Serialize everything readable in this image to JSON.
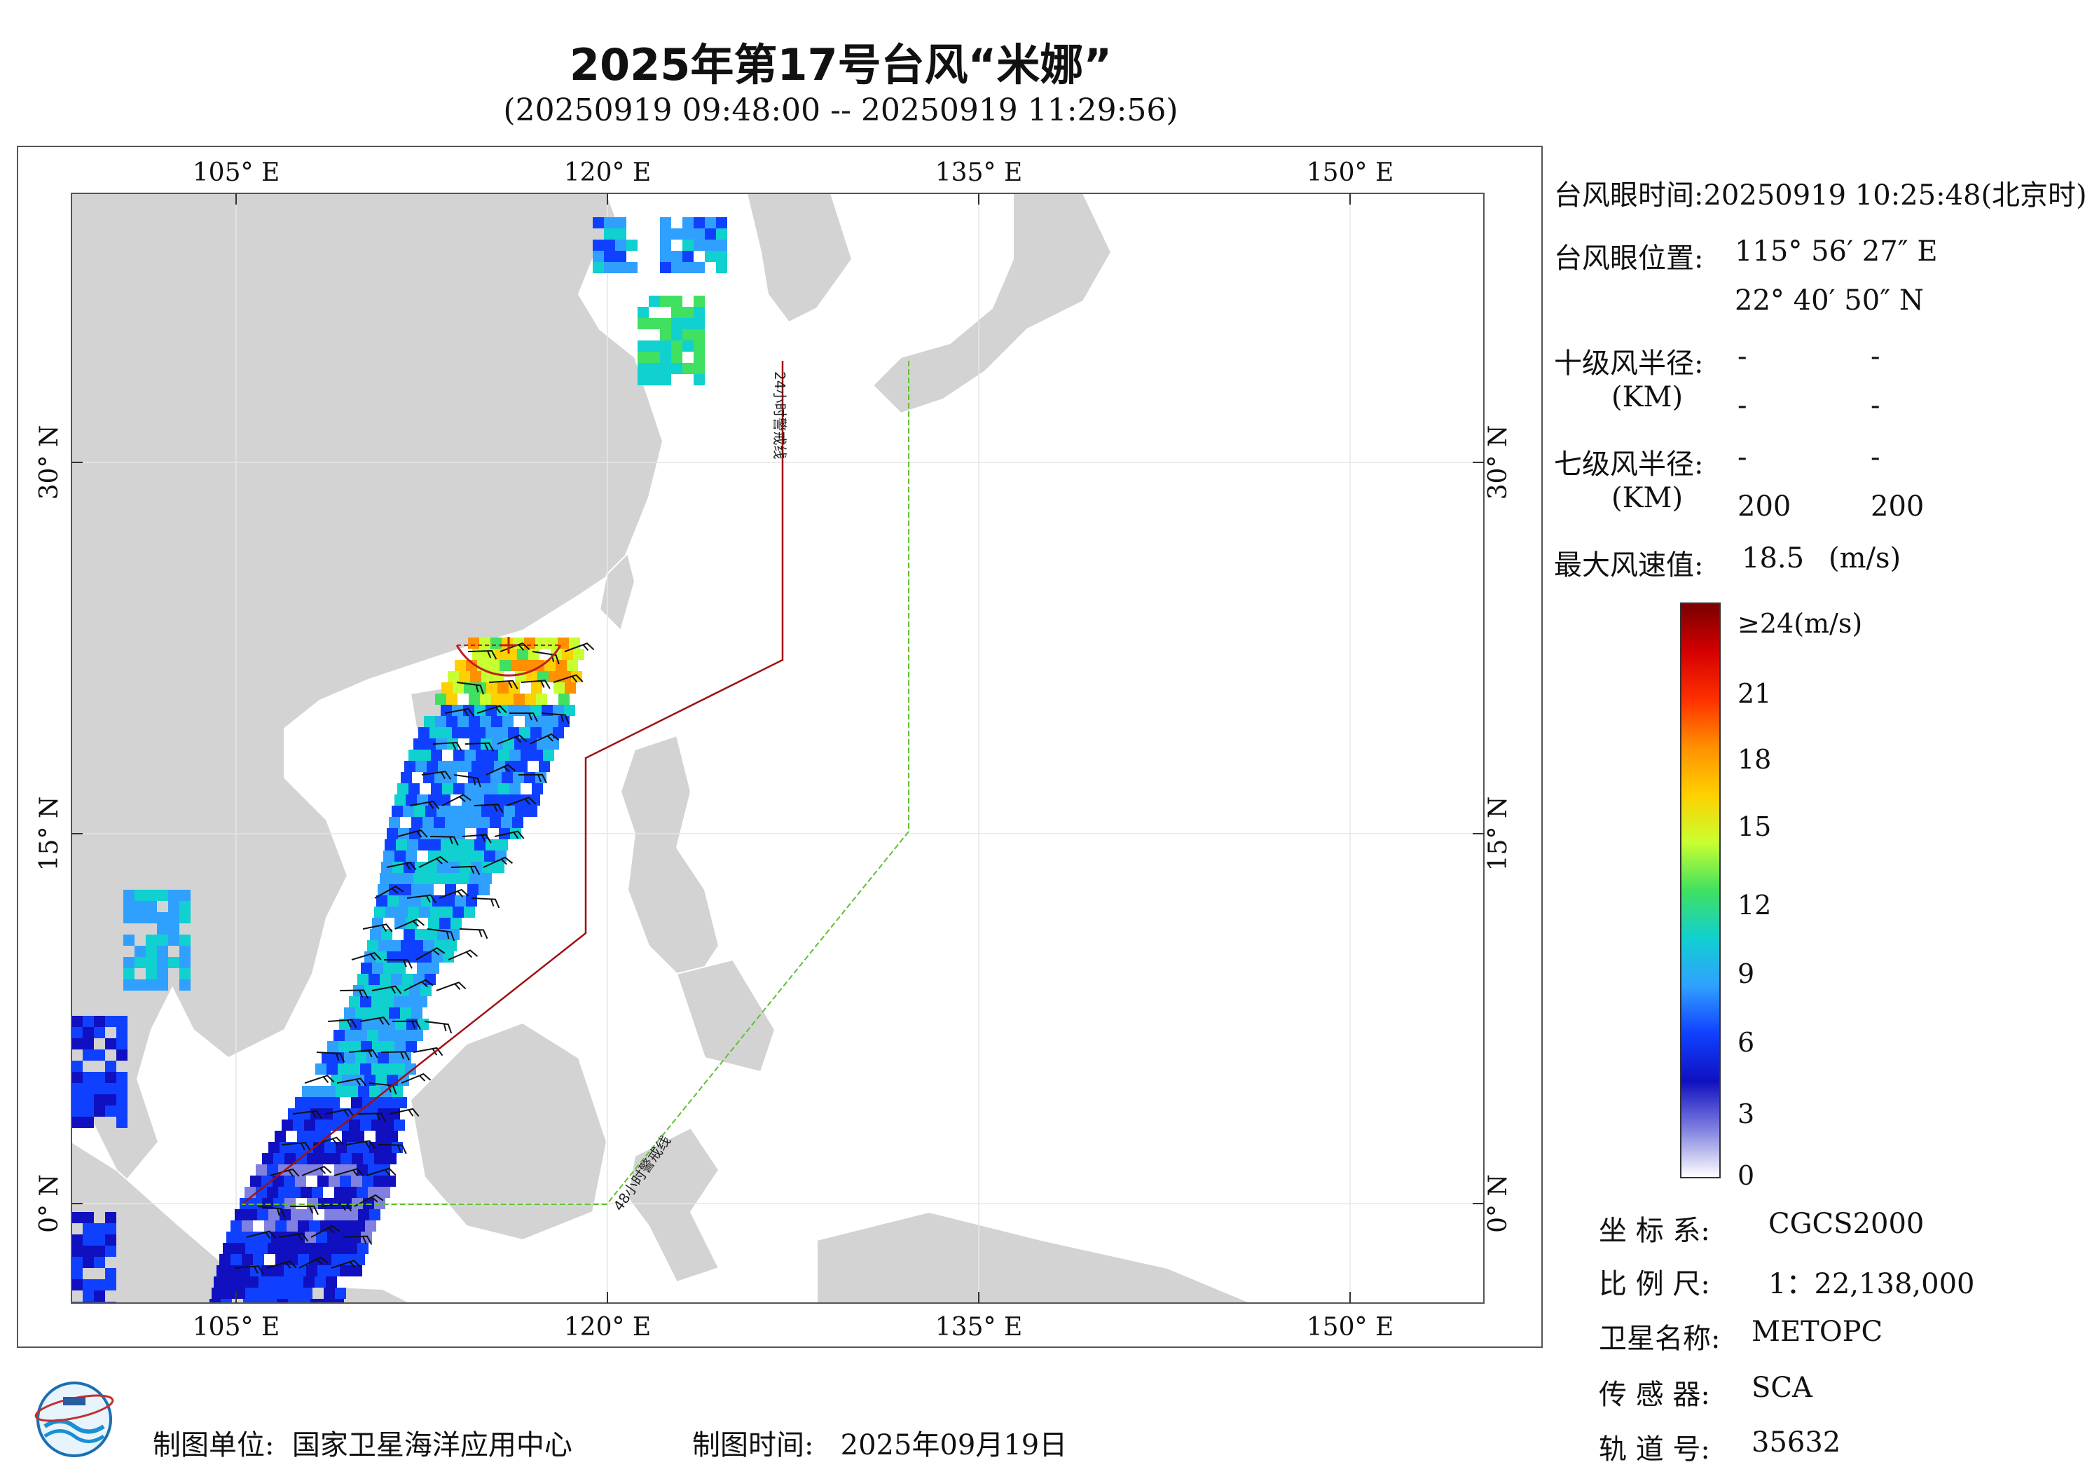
{
  "title": "2025年第17号台风“米娜”",
  "subtitle": "(20250919 09:48:00 -- 20250919 11:29:56)",
  "map": {
    "lon_ticks_top": [
      "105° E",
      "120° E",
      "135° E",
      "150° E"
    ],
    "lon_ticks_bottom": [
      "105° E",
      "120° E",
      "135° E",
      "150° E"
    ],
    "lat_ticks_left": [
      "30° N",
      "15° N",
      "0° N"
    ],
    "lat_ticks_right": [
      "30° N",
      "15° N",
      "0° N"
    ],
    "warning_24h_label": "24小时警戒线",
    "warning_48h_label": "48小时警戒线",
    "colors": {
      "land": "#d3d3d3",
      "sea": "#ffffff",
      "warning_24h": "#a01010",
      "warning_48h": "#60c030",
      "grid": "#e6e6e6"
    }
  },
  "info": {
    "eye_time_label": "台风眼时间:",
    "eye_time_value": "20250919 10:25:48(北京时)",
    "eye_pos_label": "台风眼位置:",
    "eye_lon": "115° 56′ 27″ E",
    "eye_lat": "22° 40′ 50″ N",
    "r10_label": "十级风半径:",
    "r10_unit": "(KM)",
    "r10_values": [
      "-",
      "-",
      "-",
      "-"
    ],
    "r7_label": "七级风半径:",
    "r7_unit": "(KM)",
    "r7_values": [
      "-",
      "-",
      "200",
      "200"
    ],
    "max_wind_label": "最大风速值:",
    "max_wind_value": "18.5",
    "max_wind_unit": "(m/s)"
  },
  "colorbar": {
    "labels": [
      "≥24(m/s)",
      "21",
      "18",
      "15",
      "12",
      "9",
      "6",
      "3",
      "0"
    ],
    "stops": [
      "#7a0000",
      "#d40000",
      "#ff3000",
      "#ff9000",
      "#ffd000",
      "#c8ff30",
      "#40e060",
      "#10d0d0",
      "#30a0ff",
      "#1040ff",
      "#1010c0",
      "#8080e0",
      "#ffffff"
    ]
  },
  "meta": {
    "crs_label": "坐 标 系:",
    "crs_value": "CGCS2000",
    "scale_label": "比 例 尺:",
    "scale_value": "1：22,138,000",
    "sat_label": "卫星名称:",
    "sat_value": "METOPC",
    "sensor_label": "传 感 器:",
    "sensor_value": "SCA",
    "orbit_label": "轨 道 号:",
    "orbit_value": "35632"
  },
  "footer": {
    "unit_label": "制图单位:",
    "unit_value": "国家卫星海洋应用中心",
    "time_label": "制图时间:",
    "time_value": "2025年09月19日"
  }
}
